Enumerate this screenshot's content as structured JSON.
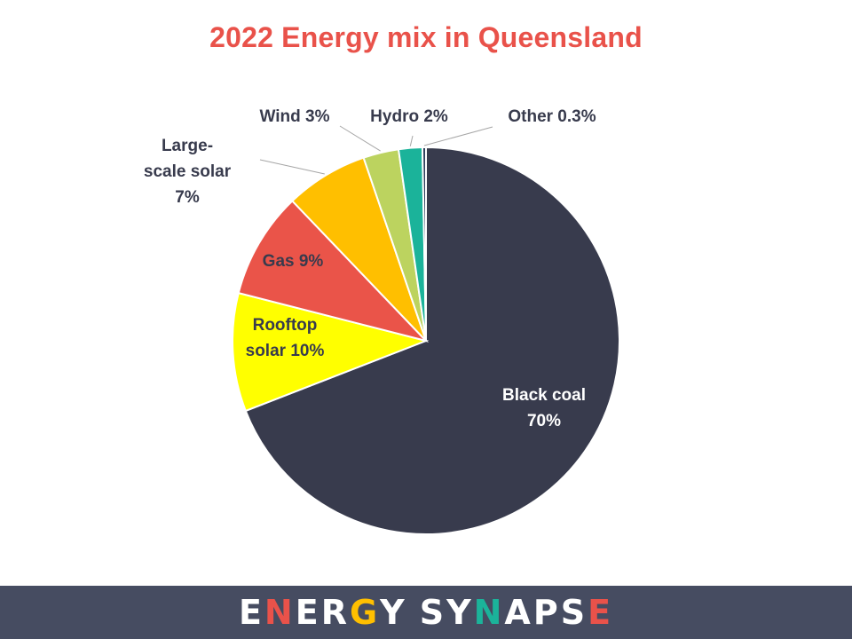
{
  "title": "2022 Energy mix in Queensland",
  "chart_data": {
    "type": "pie",
    "title": "2022 Energy mix in Queensland",
    "slices": [
      {
        "label": "Black coal",
        "value": 70,
        "value_label": "70%",
        "color": "#383b4d"
      },
      {
        "label": "Rooftop solar",
        "value": 10,
        "value_label": "10%",
        "color": "#ffff00"
      },
      {
        "label": "Gas",
        "value": 9,
        "value_label": "9%",
        "color": "#ea5449"
      },
      {
        "label": "Large-scale solar",
        "value": 7,
        "value_label": "7%",
        "color": "#ffbf00"
      },
      {
        "label": "Wind",
        "value": 3,
        "value_label": "3%",
        "color": "#bcd35f"
      },
      {
        "label": "Hydro",
        "value": 2,
        "value_label": "2%",
        "color": "#1bb39a"
      },
      {
        "label": "Other",
        "value": 0.3,
        "value_label": "0.3%",
        "color": "#2e3f5c"
      }
    ],
    "data_labels": [
      {
        "lines": [
          "Black coal",
          "70%"
        ],
        "color": "#ffffff",
        "leader": false
      },
      {
        "lines": [
          "Rooftop",
          "solar 10%"
        ],
        "color": "#383b4d",
        "leader": false
      },
      {
        "lines": [
          "Gas 9%"
        ],
        "color": "#383b4d",
        "leader": false
      },
      {
        "lines": [
          "Large-",
          "scale solar",
          "7%"
        ],
        "color": "#383b4d",
        "leader": true
      },
      {
        "lines": [
          "Wind 3%"
        ],
        "color": "#383b4d",
        "leader": true
      },
      {
        "lines": [
          "Hydro 2%"
        ],
        "color": "#383b4d",
        "leader": true
      },
      {
        "lines": [
          "Other 0.3%"
        ],
        "color": "#383b4d",
        "leader": true
      }
    ]
  },
  "footer": {
    "brand": "ENERGY SYNAPSE",
    "brand_letter_colors": [
      "#ffffff",
      "#e9524a",
      "#ffffff",
      "#ffffff",
      "#ffbf00",
      "#ffffff",
      "#ffffff",
      "#ffffff",
      "#1bb39a",
      "#ffffff",
      "#ffffff",
      "#ffffff",
      "#e9524a",
      "#ffffff"
    ],
    "background": "#464c61"
  }
}
